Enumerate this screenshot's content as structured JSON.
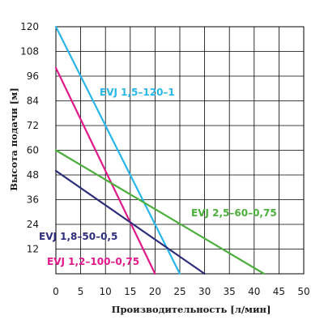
{
  "chart_data": {
    "type": "line",
    "xlabel": "Производительность [л/мин]",
    "ylabel": "Высота подачи [м]",
    "xlim": [
      0,
      50
    ],
    "ylim": [
      0,
      120
    ],
    "xticks": [
      0,
      5,
      10,
      15,
      20,
      25,
      30,
      35,
      40,
      45,
      50
    ],
    "yticks": [
      12,
      24,
      36,
      48,
      60,
      72,
      84,
      96,
      108,
      120
    ],
    "grid": true,
    "series": [
      {
        "name": "EVJ 1,5–120–1",
        "color": "#29b6e8",
        "x": [
          0,
          25
        ],
        "y": [
          120,
          0
        ]
      },
      {
        "name": "EVJ 1,2–100–0,75",
        "color": "#e0198a",
        "x": [
          0,
          20
        ],
        "y": [
          100,
          0
        ]
      },
      {
        "name": "EVJ 1,8–50–0,5",
        "color": "#2e2d7a",
        "x": [
          0,
          30
        ],
        "y": [
          50,
          0
        ]
      },
      {
        "name": "EVJ 2,5–60–0,75",
        "color": "#4cae3c",
        "x": [
          0,
          42
        ],
        "y": [
          60,
          0
        ]
      }
    ]
  }
}
